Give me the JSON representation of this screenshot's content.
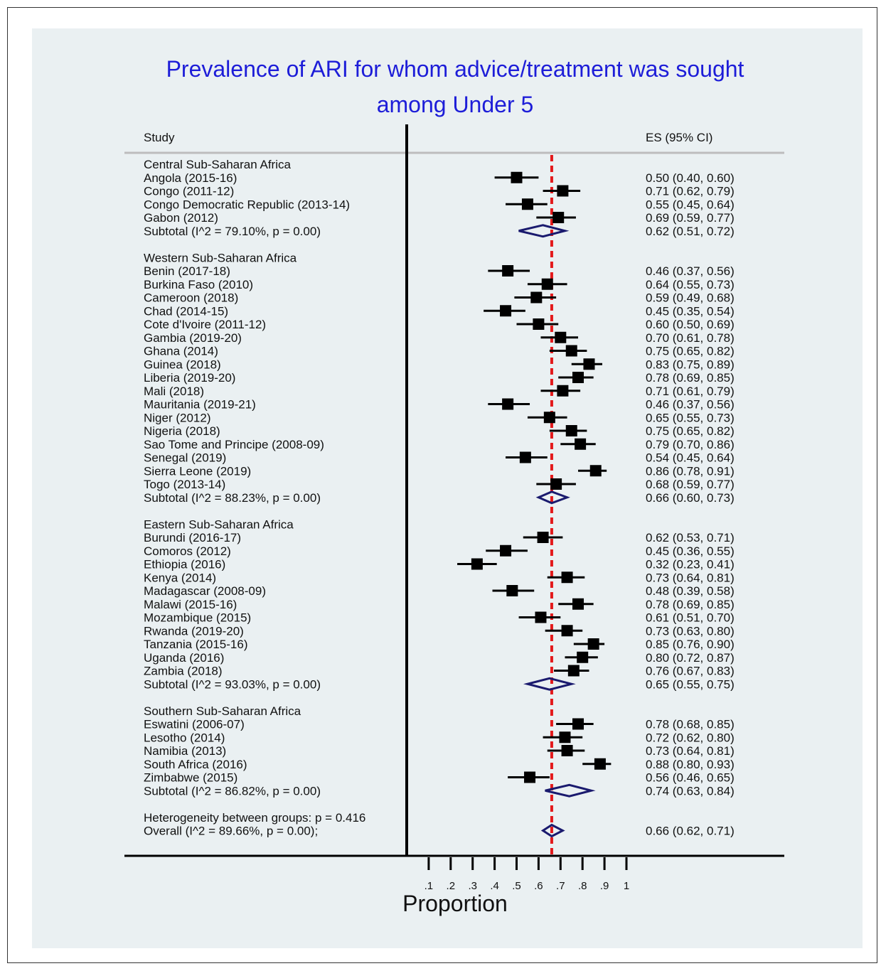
{
  "chart_data": {
    "type": "forest",
    "title_lines": [
      "Prevalence of ARI for whom advice/treatment was sought",
      "among Under 5"
    ],
    "col_study": "Study",
    "col_es": "ES (95% CI)",
    "xlabel": "Proportion",
    "xticks": [
      0.1,
      0.2,
      0.3,
      0.4,
      0.5,
      0.6,
      0.7,
      0.8,
      0.9,
      1.0
    ],
    "xtick_labels": [
      ".1",
      ".2",
      ".3",
      ".4",
      ".5",
      ".6",
      ".7",
      ".8",
      ".9",
      "1"
    ],
    "reference_line": 0.66,
    "groups": [
      {
        "name": "Central Sub-Saharan Africa",
        "studies": [
          {
            "label": "Angola (2015-16)",
            "es": 0.5,
            "lo": 0.4,
            "hi": 0.6,
            "text": "0.50 (0.40, 0.60)"
          },
          {
            "label": "Congo (2011-12)",
            "es": 0.71,
            "lo": 0.62,
            "hi": 0.79,
            "text": "0.71 (0.62, 0.79)"
          },
          {
            "label": "Congo Democratic Republic (2013-14)",
            "es": 0.55,
            "lo": 0.45,
            "hi": 0.64,
            "text": "0.55 (0.45, 0.64)"
          },
          {
            "label": "Gabon (2012)",
            "es": 0.69,
            "lo": 0.59,
            "hi": 0.77,
            "text": "0.69 (0.59, 0.77)"
          }
        ],
        "subtotal": {
          "label": "Subtotal  (I^2 = 79.10%, p = 0.00)",
          "es": 0.62,
          "lo": 0.51,
          "hi": 0.72,
          "text": "0.62 (0.51, 0.72)"
        }
      },
      {
        "name": "Western Sub-Saharan Africa",
        "studies": [
          {
            "label": "Benin (2017-18)",
            "es": 0.46,
            "lo": 0.37,
            "hi": 0.56,
            "text": "0.46 (0.37, 0.56)"
          },
          {
            "label": "Burkina Faso (2010)",
            "es": 0.64,
            "lo": 0.55,
            "hi": 0.73,
            "text": "0.64 (0.55, 0.73)"
          },
          {
            "label": "Cameroon (2018)",
            "es": 0.59,
            "lo": 0.49,
            "hi": 0.68,
            "text": "0.59 (0.49, 0.68)"
          },
          {
            "label": "Chad (2014-15)",
            "es": 0.45,
            "lo": 0.35,
            "hi": 0.54,
            "text": "0.45 (0.35, 0.54)"
          },
          {
            "label": "Cote d'Ivoire (2011-12)",
            "es": 0.6,
            "lo": 0.5,
            "hi": 0.69,
            "text": "0.60 (0.50, 0.69)"
          },
          {
            "label": "Gambia (2019-20)",
            "es": 0.7,
            "lo": 0.61,
            "hi": 0.78,
            "text": "0.70 (0.61, 0.78)"
          },
          {
            "label": "Ghana (2014)",
            "es": 0.75,
            "lo": 0.65,
            "hi": 0.82,
            "text": "0.75 (0.65, 0.82)"
          },
          {
            "label": "Guinea (2018)",
            "es": 0.83,
            "lo": 0.75,
            "hi": 0.89,
            "text": "0.83 (0.75, 0.89)"
          },
          {
            "label": "Liberia (2019-20)",
            "es": 0.78,
            "lo": 0.69,
            "hi": 0.85,
            "text": "0.78 (0.69, 0.85)"
          },
          {
            "label": "Mali (2018)",
            "es": 0.71,
            "lo": 0.61,
            "hi": 0.79,
            "text": "0.71 (0.61, 0.79)"
          },
          {
            "label": "Mauritania (2019-21)",
            "es": 0.46,
            "lo": 0.37,
            "hi": 0.56,
            "text": "0.46 (0.37, 0.56)"
          },
          {
            "label": "Niger (2012)",
            "es": 0.65,
            "lo": 0.55,
            "hi": 0.73,
            "text": "0.65 (0.55, 0.73)"
          },
          {
            "label": "Nigeria (2018)",
            "es": 0.75,
            "lo": 0.65,
            "hi": 0.82,
            "text": "0.75 (0.65, 0.82)"
          },
          {
            "label": "Sao Tome and Principe (2008-09)",
            "es": 0.79,
            "lo": 0.7,
            "hi": 0.86,
            "text": "0.79 (0.70, 0.86)"
          },
          {
            "label": "Senegal (2019)",
            "es": 0.54,
            "lo": 0.45,
            "hi": 0.64,
            "text": "0.54 (0.45, 0.64)"
          },
          {
            "label": "Sierra Leone (2019)",
            "es": 0.86,
            "lo": 0.78,
            "hi": 0.91,
            "text": "0.86 (0.78, 0.91)"
          },
          {
            "label": "Togo (2013-14)",
            "es": 0.68,
            "lo": 0.59,
            "hi": 0.77,
            "text": "0.68 (0.59, 0.77)"
          }
        ],
        "subtotal": {
          "label": "Subtotal  (I^2 = 88.23%, p = 0.00)",
          "es": 0.66,
          "lo": 0.6,
          "hi": 0.73,
          "text": "0.66 (0.60, 0.73)"
        }
      },
      {
        "name": "Eastern Sub-Saharan Africa",
        "studies": [
          {
            "label": "Burundi (2016-17)",
            "es": 0.62,
            "lo": 0.53,
            "hi": 0.71,
            "text": "0.62 (0.53, 0.71)"
          },
          {
            "label": "Comoros (2012)",
            "es": 0.45,
            "lo": 0.36,
            "hi": 0.55,
            "text": "0.45 (0.36, 0.55)"
          },
          {
            "label": "Ethiopia (2016)",
            "es": 0.32,
            "lo": 0.23,
            "hi": 0.41,
            "text": "0.32 (0.23, 0.41)"
          },
          {
            "label": "Kenya (2014)",
            "es": 0.73,
            "lo": 0.64,
            "hi": 0.81,
            "text": "0.73 (0.64, 0.81)"
          },
          {
            "label": "Madagascar (2008-09)",
            "es": 0.48,
            "lo": 0.39,
            "hi": 0.58,
            "text": "0.48 (0.39, 0.58)"
          },
          {
            "label": "Malawi (2015-16)",
            "es": 0.78,
            "lo": 0.69,
            "hi": 0.85,
            "text": "0.78 (0.69, 0.85)"
          },
          {
            "label": "Mozambique (2015)",
            "es": 0.61,
            "lo": 0.51,
            "hi": 0.7,
            "text": "0.61 (0.51, 0.70)"
          },
          {
            "label": "Rwanda (2019-20)",
            "es": 0.73,
            "lo": 0.63,
            "hi": 0.8,
            "text": "0.73 (0.63, 0.80)"
          },
          {
            "label": "Tanzania (2015-16)",
            "es": 0.85,
            "lo": 0.76,
            "hi": 0.9,
            "text": "0.85 (0.76, 0.90)"
          },
          {
            "label": "Uganda (2016)",
            "es": 0.8,
            "lo": 0.72,
            "hi": 0.87,
            "text": "0.80 (0.72, 0.87)"
          },
          {
            "label": "Zambia (2018)",
            "es": 0.76,
            "lo": 0.67,
            "hi": 0.83,
            "text": "0.76 (0.67, 0.83)"
          }
        ],
        "subtotal": {
          "label": "Subtotal  (I^2 = 93.03%, p = 0.00)",
          "es": 0.65,
          "lo": 0.55,
          "hi": 0.75,
          "text": "0.65 (0.55, 0.75)"
        }
      },
      {
        "name": "Southern Sub-Saharan Africa",
        "studies": [
          {
            "label": "Eswatini (2006-07)",
            "es": 0.78,
            "lo": 0.68,
            "hi": 0.85,
            "text": "0.78 (0.68, 0.85)"
          },
          {
            "label": "Lesotho (2014)",
            "es": 0.72,
            "lo": 0.62,
            "hi": 0.8,
            "text": "0.72 (0.62, 0.80)"
          },
          {
            "label": "Namibia (2013)",
            "es": 0.73,
            "lo": 0.64,
            "hi": 0.81,
            "text": "0.73 (0.64, 0.81)"
          },
          {
            "label": "South Africa (2016)",
            "es": 0.88,
            "lo": 0.8,
            "hi": 0.93,
            "text": "0.88 (0.80, 0.93)"
          },
          {
            "label": "Zimbabwe (2015)",
            "es": 0.56,
            "lo": 0.46,
            "hi": 0.65,
            "text": "0.56 (0.46, 0.65)"
          }
        ],
        "subtotal": {
          "label": "Subtotal  (I^2 = 86.82%, p = 0.00)",
          "es": 0.74,
          "lo": 0.63,
          "hi": 0.84,
          "text": "0.74 (0.63, 0.84)"
        }
      }
    ],
    "heterogeneity": "Heterogeneity between groups: p = 0.416",
    "overall": {
      "label": "Overall  (I^2 = 89.66%, p = 0.00);",
      "es": 0.66,
      "lo": 0.62,
      "hi": 0.71,
      "text": "0.66 (0.62, 0.71)"
    },
    "colors": {
      "title": "#1d1dd8",
      "reference_line": "#e31a1c",
      "diamond": "#1a1a6e",
      "marker": "#000000",
      "background": "#eaf0f2"
    }
  }
}
